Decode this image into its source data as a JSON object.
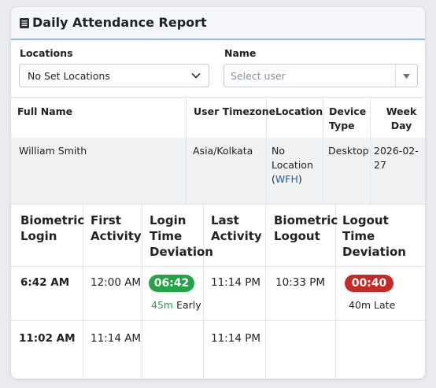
{
  "header": {
    "title": "Daily Attendance Report",
    "icon": "report-icon"
  },
  "filters": {
    "locations": {
      "label": "Locations",
      "value": "No Set Locations"
    },
    "name": {
      "label": "Name",
      "placeholder": "Select user"
    }
  },
  "summary_table": {
    "columns": [
      "Full Name",
      "User Timezone",
      "Location",
      "Device Type",
      "Week Day"
    ],
    "row": {
      "full_name": "William Smith",
      "timezone": "Asia/Kolkata",
      "location_line1": "No",
      "location_line2": "Location",
      "location_open": "(",
      "location_wfh": "WFH",
      "location_close": ")",
      "device": "Desktop",
      "week_day": "2026-02-27"
    }
  },
  "detail_table": {
    "columns": [
      "Biometric Login",
      "First Activity",
      "Login Time Deviation",
      "Last Activity",
      "Biometric Logout",
      "Logout Time Deviation"
    ],
    "rows": [
      {
        "biometric_login": "6:42 AM",
        "first_activity": "12:00 AM",
        "login_deviation_badge": "06:42",
        "login_deviation_amount": "45m",
        "login_deviation_word": "Early",
        "last_activity": "11:14 PM",
        "biometric_logout": "10:33 PM",
        "logout_deviation_badge": "00:40",
        "logout_deviation_note": "40m Late"
      },
      {
        "biometric_login": "11:02 AM",
        "first_activity": "11:14 AM",
        "last_activity": "11:14 PM"
      }
    ]
  },
  "colors": {
    "early": "#22a447",
    "late": "#c62a26",
    "link": "#1a5fb4",
    "header_accent": "#7fc1e8"
  }
}
